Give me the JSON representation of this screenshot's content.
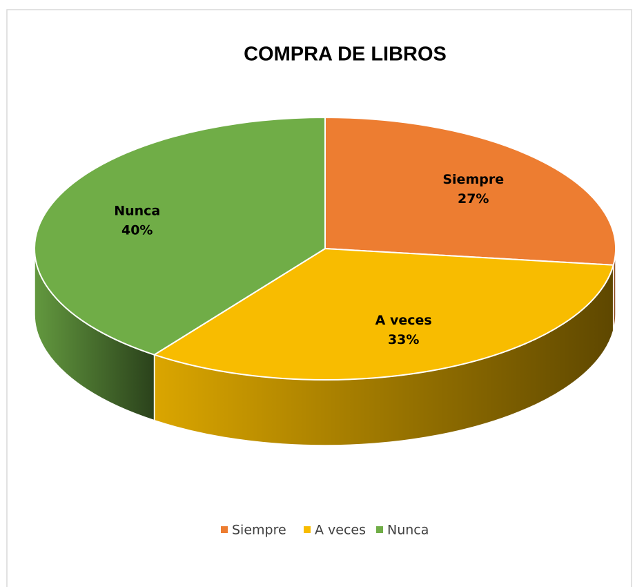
{
  "chart_data": {
    "type": "pie",
    "title": "COMPRA DE LIBROS",
    "categories": [
      "Siempre",
      "A veces",
      "Nunca"
    ],
    "values": [
      27,
      33,
      40
    ],
    "value_labels": [
      "27%",
      "33%",
      "40%"
    ],
    "colors": [
      "#ed7d31",
      "#f8bc00",
      "#70ad47"
    ],
    "legend": "bottom"
  }
}
